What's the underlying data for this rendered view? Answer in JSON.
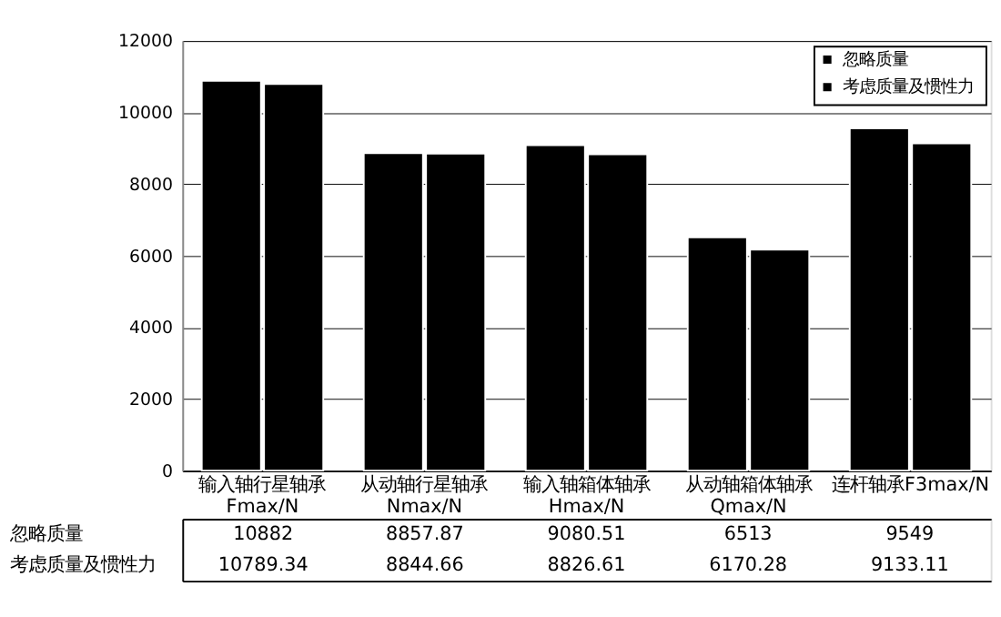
{
  "chart_data": {
    "type": "bar",
    "categories": [
      "输入轴行星轴承\nFmax/N",
      "从动轴行星轴承\nNmax/N",
      "输入轴箱体轴承\nHmax/N",
      "从动轴箱体轴承\nQmax/N",
      "连杆轴承F3max/N"
    ],
    "series": [
      {
        "name": "忽略质量",
        "color": "#000000",
        "values": [
          10882,
          8857.87,
          9080.51,
          6513,
          9549
        ]
      },
      {
        "name": "考虑质量及惯性力",
        "color": "#000000",
        "values": [
          10789.34,
          8844.66,
          8826.61,
          6170.28,
          9133.11
        ]
      }
    ],
    "ylim": [
      0,
      12000
    ],
    "yticks": [
      0,
      2000,
      4000,
      6000,
      8000,
      10000,
      12000
    ],
    "grid": "y",
    "legend": "top right",
    "data_labels": true
  }
}
